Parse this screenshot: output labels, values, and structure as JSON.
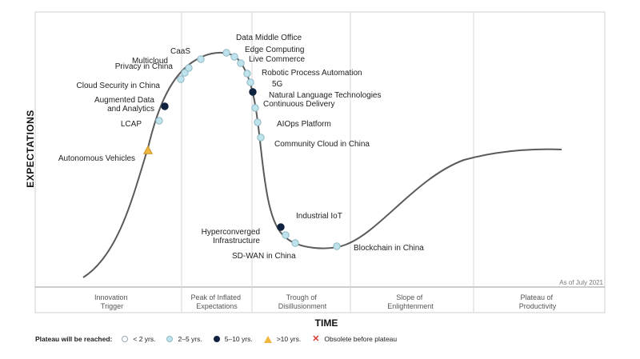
{
  "chart_data": {
    "type": "hype-cycle",
    "ylabel": "EXPECTATIONS",
    "xlabel": "TIME",
    "as_of": "As of July 2021",
    "phases": [
      {
        "lines": [
          "Innovation",
          "Trigger"
        ]
      },
      {
        "lines": [
          "Peak of Inflated",
          "Expectations"
        ]
      },
      {
        "lines": [
          "Trough of",
          "Disillusionment"
        ]
      },
      {
        "lines": [
          "Slope of",
          "Enlightenment"
        ]
      },
      {
        "lines": [
          "Plateau of",
          "Productivity"
        ]
      }
    ],
    "categories": {
      "lt2": {
        "label": "< 2 yrs.",
        "fill": "#ffffff",
        "stroke": "#9aa9b2",
        "shape": "circle"
      },
      "2to5": {
        "label": "2–5 yrs.",
        "fill": "#bfe3ec",
        "stroke": "#8fb8c4",
        "shape": "circle"
      },
      "5to10": {
        "label": "5–10 yrs.",
        "fill": "#0f2340",
        "stroke": "#0f2340",
        "shape": "circle"
      },
      "gt10": {
        "label": ">10 yrs.",
        "fill": "#f0b73e",
        "stroke": "#c99225",
        "shape": "triangle"
      },
      "obsolete": {
        "label": "Obsolete before plateau",
        "fill": "#d93a32",
        "stroke": "#d93a32",
        "shape": "x"
      }
    },
    "technologies": [
      {
        "name": "Autonomous Vehicles",
        "category": "gt10"
      },
      {
        "name": "LCAP",
        "category": "2to5"
      },
      {
        "name": "Augmented Data and Analytics",
        "category": "5to10"
      },
      {
        "name": "Cloud Security in China",
        "category": "2to5"
      },
      {
        "name": "Privacy in China",
        "category": "2to5"
      },
      {
        "name": "Multicloud",
        "category": "2to5"
      },
      {
        "name": "CaaS",
        "category": "2to5"
      },
      {
        "name": "Data Middle Office",
        "category": "2to5"
      },
      {
        "name": "Edge Computing",
        "category": "2to5"
      },
      {
        "name": "Live Commerce",
        "category": "2to5"
      },
      {
        "name": "Robotic Process Automation",
        "category": "2to5"
      },
      {
        "name": "5G",
        "category": "2to5"
      },
      {
        "name": "Natural Language Technologies",
        "category": "5to10"
      },
      {
        "name": "Continuous Delivery",
        "category": "2to5"
      },
      {
        "name": "AIOps Platform",
        "category": "2to5"
      },
      {
        "name": "Community Cloud in China",
        "category": "2to5"
      },
      {
        "name": "Industrial IoT",
        "category": "5to10"
      },
      {
        "name": "Hyperconverged Infrastructure",
        "category": "2to5"
      },
      {
        "name": "SD-WAN in China",
        "category": "2to5"
      },
      {
        "name": "Blockchain in China",
        "category": "2to5"
      }
    ]
  },
  "legend": {
    "title": "Plateau will be reached:",
    "order": [
      "lt2",
      "2to5",
      "5to10",
      "gt10",
      "obsolete"
    ]
  }
}
